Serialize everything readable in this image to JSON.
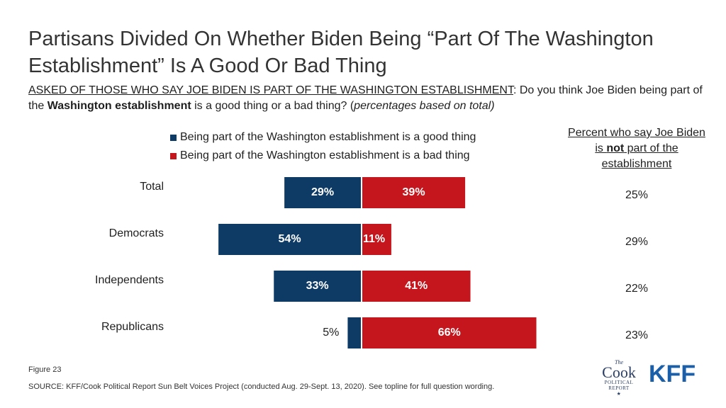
{
  "title": "Partisans Divided On Whether Biden Being “Part Of The Washington Establishment” Is A Good Or Bad Thing",
  "question": {
    "prefix_underlined": "ASKED OF THOSE WHO SAY JOE BIDEN IS PART OF THE WASHINGTON ESTABLISHMENT",
    "after_prefix": ": Do you think Joe Biden being part of the ",
    "bold": "Washington establishment",
    "after_bold": " is a good thing or a bad thing? (",
    "italic": "percentages based on total)"
  },
  "side_header": {
    "line_before": "Percent who say Joe Biden is ",
    "bold": "not",
    "line_after": " part of the establishment"
  },
  "footer": {
    "figure": "Figure 23",
    "source": "SOURCE: KFF/Cook Political Report Sun Belt Voices Project (conducted Aug. 29-Sept. 13, 2020). See topline for full question wording."
  },
  "logos": {
    "cook_the": "The",
    "cook_main": "Cook",
    "cook_sub1": "POLITICAL",
    "cook_sub2": "REPORT",
    "kff": "KFF"
  },
  "colors": {
    "good": "#0e3b66",
    "bad": "#c4161c"
  },
  "chart_data": {
    "type": "bar",
    "orientation": "horizontal-diverging",
    "categories": [
      "Total",
      "Democrats",
      "Independents",
      "Republicans"
    ],
    "series": [
      {
        "name": "Being part of the Washington establishment is a good thing",
        "values": [
          29,
          54,
          33,
          5
        ],
        "labels": [
          "29%",
          "54%",
          "33%",
          "5%"
        ]
      },
      {
        "name": "Being part of the Washington establishment is a bad thing",
        "values": [
          39,
          11,
          41,
          66
        ],
        "labels": [
          "39%",
          "11%",
          "41%",
          "66%"
        ]
      }
    ],
    "side_values": [
      25,
      29,
      22,
      23
    ],
    "side_labels": [
      "25%",
      "29%",
      "22%",
      "23%"
    ],
    "legend_position": "top",
    "grid": false
  }
}
